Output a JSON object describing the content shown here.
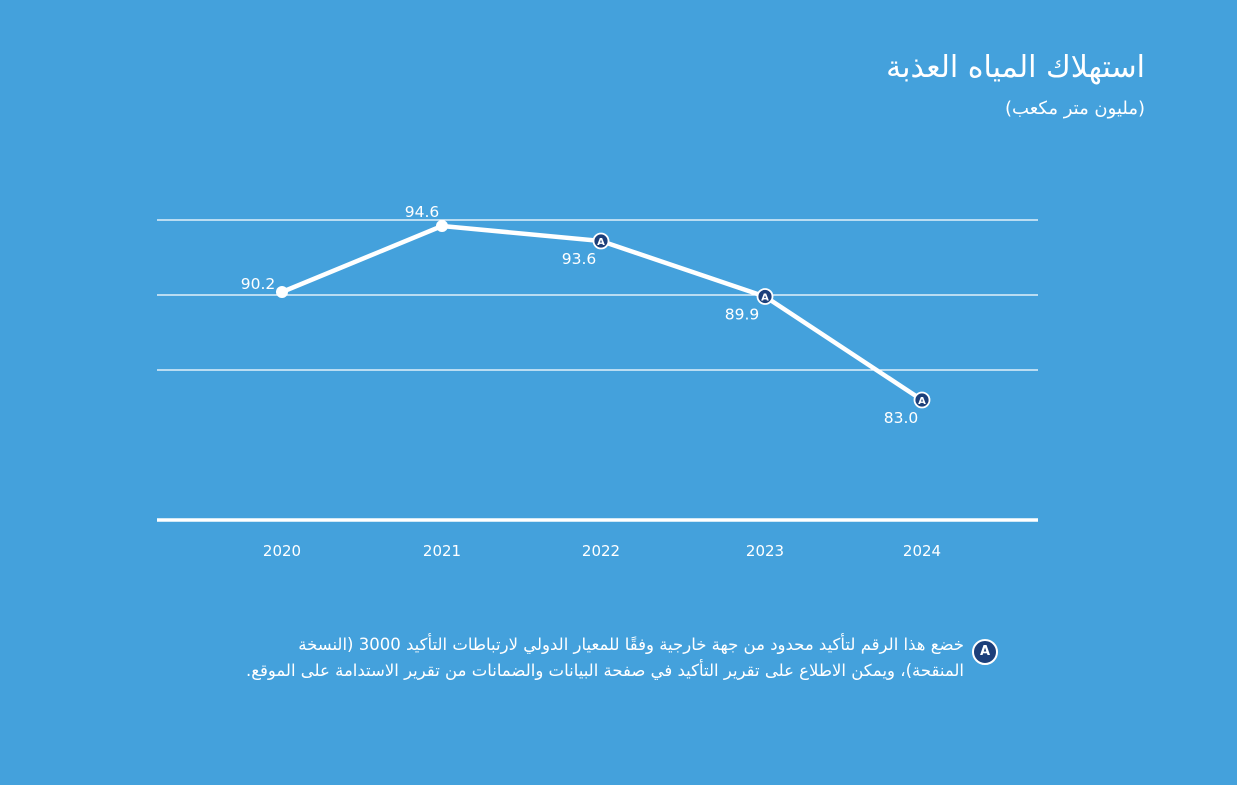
{
  "chart_data": {
    "type": "line",
    "title": "استهلاك المياه العذبة",
    "subtitle": "(مليون متر مكعب)",
    "x": [
      "2020",
      "2021",
      "2022",
      "2023",
      "2024"
    ],
    "series": [
      {
        "values": [
          90.2,
          94.6,
          93.6,
          89.9,
          83.0
        ],
        "labels": [
          "90.2",
          "94.6",
          "93.6",
          "89.9",
          "83.0"
        ],
        "assured": [
          false,
          false,
          true,
          true,
          true
        ]
      }
    ],
    "ylim": [
      75,
      95
    ],
    "grid": true,
    "marker_badge": "A",
    "colors": {
      "background": "#44a1dc",
      "line": "#ffffff",
      "badge": "#1c3f7a"
    }
  },
  "footnote": {
    "badge": "A",
    "text": "خضع هذا الرقم لتأكيد محدود من جهة خارجية وفقًا للمعيار الدولي لارتباطات التأكيد 3000 (النسخة المنقحة)، ويمكن الاطلاع على تقرير التأكيد في صفحة البيانات والضمانات من تقرير الاستدامة على الموقع."
  }
}
